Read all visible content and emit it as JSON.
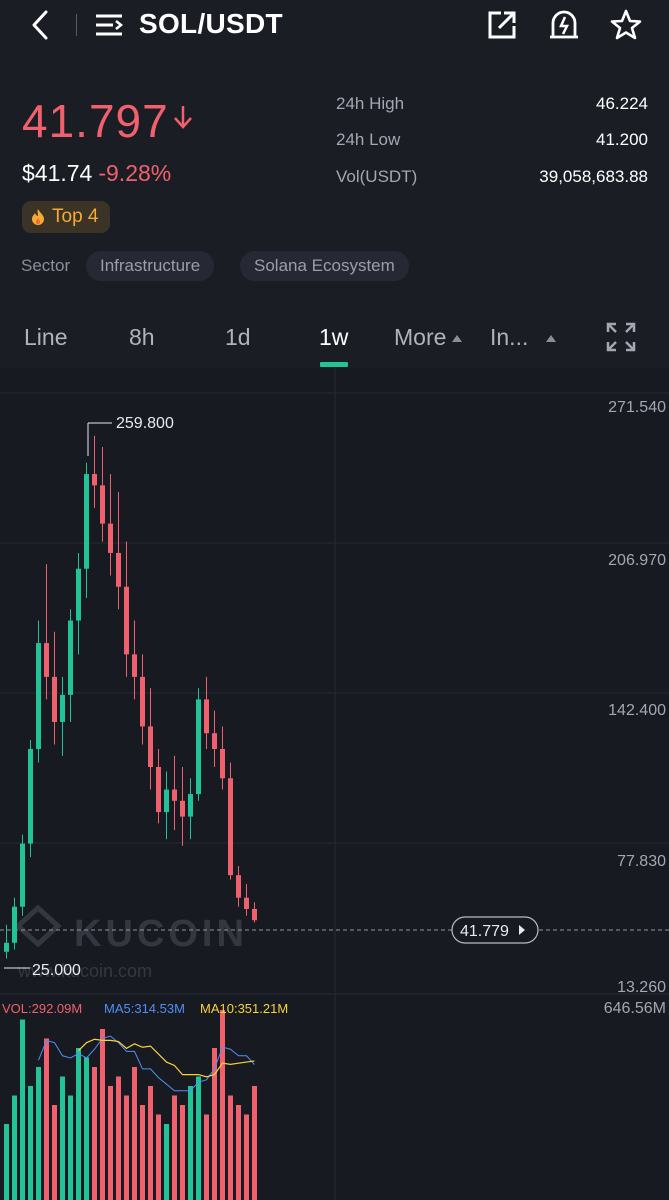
{
  "header": {
    "pair": "SOL/USDT",
    "icons": [
      "back-arrow-icon",
      "menu-list-icon",
      "share-icon",
      "price-alert-icon",
      "star-icon"
    ]
  },
  "ticker": {
    "last_price": "41.797",
    "usd_price": "$41.74",
    "change_pct": "-9.28%",
    "rank_badge": "Top 4",
    "sector_label": "Sector",
    "sectors": [
      "Infrastructure",
      "Solana Ecosystem"
    ]
  },
  "stats": [
    {
      "label": "24h High",
      "value": "46.224"
    },
    {
      "label": "24h Low",
      "value": "41.200"
    },
    {
      "label": "Vol(USDT)",
      "value": "39,058,683.88"
    }
  ],
  "tabs": [
    "Line",
    "8h",
    "1d",
    "1w",
    "More",
    "In..."
  ],
  "active_tab": "1w",
  "chart": {
    "y_axis_labels": [
      "271.540",
      "206.970",
      "142.400",
      "77.830",
      "13.260"
    ],
    "high_marker": "259.800",
    "low_marker": "25.000",
    "current_price_tag": "41.779",
    "watermark": "KUCOIN",
    "watermark_url": "www.kucoin.com",
    "vol_legend": {
      "vol": "VOL:292.09M",
      "ma5": "MA5:314.53M",
      "ma10": "MA10:351.21M"
    },
    "vol_max_label": "646.56M"
  },
  "colors": {
    "up": "#21c397",
    "down": "#f0616d",
    "accent": "#21c397",
    "ma5": "#4f8ff7",
    "ma10": "#f5d33b"
  }
}
